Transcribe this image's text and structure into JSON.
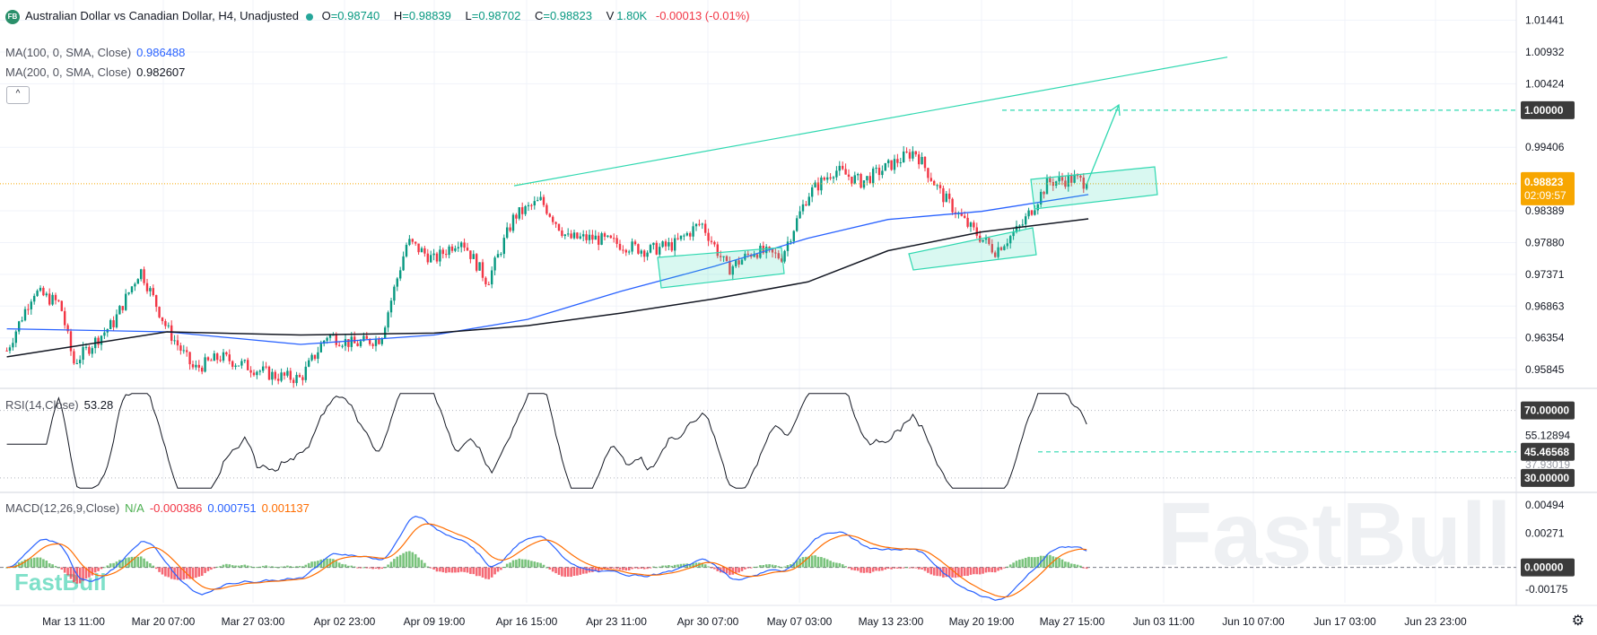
{
  "header": {
    "symbol_badge": "FB",
    "title": "Australian Dollar vs Canadian Dollar, H4, Unadjusted",
    "open_label": "O",
    "open": "=0.98740",
    "high_label": "H",
    "high": "=0.98839",
    "low_label": "L",
    "low": "=0.98702",
    "close_label": "C",
    "close": "=0.98823",
    "volume_label": "V",
    "volume": "1.80K",
    "change": "-0.00013 (-0.01%)"
  },
  "indicators": {
    "ma100_label": "MA(100, 0, SMA, Close)",
    "ma100_value": "0.986488",
    "ma200_label": "MA(200, 0, SMA, Close)",
    "ma200_value": "0.982607",
    "rsi_label": "RSI(14,Close)",
    "rsi_value": "53.28",
    "macd_label": "MACD(12,26,9,Close)",
    "macd_na": "N/A",
    "macd_hist": "-0.000386",
    "macd_line": "0.000751",
    "macd_signal": "0.001137"
  },
  "price_axis": {
    "ticks": [
      "1.01441",
      "1.00932",
      "1.00424",
      "0.99406",
      "0.98389",
      "0.97880",
      "0.97371",
      "0.96863",
      "0.96354",
      "0.95845"
    ],
    "target_tag": "1.00000",
    "current_tag": "0.98823",
    "countdown": "02:09:57"
  },
  "rsi_axis": {
    "ticks": [
      "70.00000",
      "55.12894",
      "45.46568",
      "30.00000"
    ],
    "partial_tick": "37.93019"
  },
  "macd_axis": {
    "ticks": [
      "0.00494",
      "0.00271",
      "0.00000",
      "-0.00175"
    ]
  },
  "time_axis": {
    "ticks": [
      "Mar 13 11:00",
      "Mar 20 07:00",
      "Mar 27 03:00",
      "Apr 02 23:00",
      "Apr 09 19:00",
      "Apr 16 15:00",
      "Apr 23 11:00",
      "Apr 30 07:00",
      "May 07 03:00",
      "May 13 23:00",
      "May 20 19:00",
      "May 27 15:00",
      "Jun 03 11:00",
      "Jun 10 07:00",
      "Jun 17 03:00",
      "Jun 23 23:00"
    ]
  },
  "watermark": {
    "large": "FastBull",
    "small": "FastBull"
  },
  "colors": {
    "up": "#089981",
    "down": "#f23645",
    "ma100": "#2962ff",
    "ma200": "#131722",
    "drawing": "#2fd8b0",
    "macd_line": "#2962ff",
    "signal_line": "#ff6d00",
    "current_price": "#f7a600"
  },
  "chart_data": {
    "type": "candlestick",
    "title": "Australian Dollar vs Canadian Dollar, H4, Unadjusted",
    "price_range": [
      0.9556,
      1.0165
    ],
    "current_price": 0.98823,
    "target_level": 1.0,
    "ma100_last": 0.986488,
    "ma200_last": 0.982607,
    "close_path": [
      {
        "x": "Mar 08",
        "y": 0.9615
      },
      {
        "x": "Mar 10",
        "y": 0.971
      },
      {
        "x": "Mar 12",
        "y": 0.969
      },
      {
        "x": "Mar 13",
        "y": 0.9595
      },
      {
        "x": "Mar 16",
        "y": 0.966
      },
      {
        "x": "Mar 18",
        "y": 0.9745
      },
      {
        "x": "Mar 20",
        "y": 0.965
      },
      {
        "x": "Mar 22",
        "y": 0.9585
      },
      {
        "x": "Mar 24",
        "y": 0.9605
      },
      {
        "x": "Mar 26",
        "y": 0.959
      },
      {
        "x": "Mar 28",
        "y": 0.9575
      },
      {
        "x": "Mar 30",
        "y": 0.957
      },
      {
        "x": "Apr 01",
        "y": 0.964
      },
      {
        "x": "Apr 03",
        "y": 0.9625
      },
      {
        "x": "Apr 05",
        "y": 0.9635
      },
      {
        "x": "Apr 07",
        "y": 0.979
      },
      {
        "x": "Apr 09",
        "y": 0.976
      },
      {
        "x": "Apr 11",
        "y": 0.9795
      },
      {
        "x": "Apr 13",
        "y": 0.9725
      },
      {
        "x": "Apr 15",
        "y": 0.983
      },
      {
        "x": "Apr 17",
        "y": 0.9855
      },
      {
        "x": "Apr 19",
        "y": 0.9795
      },
      {
        "x": "Apr 21",
        "y": 0.9795
      },
      {
        "x": "Apr 23",
        "y": 0.9785
      },
      {
        "x": "Apr 25",
        "y": 0.9775
      },
      {
        "x": "Apr 27",
        "y": 0.9785
      },
      {
        "x": "Apr 29",
        "y": 0.982
      },
      {
        "x": "May 01",
        "y": 0.9745
      },
      {
        "x": "May 03",
        "y": 0.9775
      },
      {
        "x": "May 05",
        "y": 0.9765
      },
      {
        "x": "May 07",
        "y": 0.9865
      },
      {
        "x": "May 09",
        "y": 0.9905
      },
      {
        "x": "May 11",
        "y": 0.9885
      },
      {
        "x": "May 13",
        "y": 0.991
      },
      {
        "x": "May 15",
        "y": 0.9935
      },
      {
        "x": "May 17",
        "y": 0.9865
      },
      {
        "x": "May 19",
        "y": 0.9815
      },
      {
        "x": "May 21",
        "y": 0.9775
      },
      {
        "x": "May 23",
        "y": 0.9815
      },
      {
        "x": "May 25",
        "y": 0.9885
      },
      {
        "x": "May 27",
        "y": 0.989
      },
      {
        "x": "May 28",
        "y": 0.9882
      }
    ],
    "ma100": [
      {
        "x": "Mar 08",
        "y": 0.965
      },
      {
        "x": "Mar 20",
        "y": 0.9645
      },
      {
        "x": "Mar 30",
        "y": 0.9625
      },
      {
        "x": "Apr 09",
        "y": 0.964
      },
      {
        "x": "Apr 16",
        "y": 0.9665
      },
      {
        "x": "Apr 23",
        "y": 0.971
      },
      {
        "x": "Apr 30",
        "y": 0.975
      },
      {
        "x": "May 07",
        "y": 0.9795
      },
      {
        "x": "May 13",
        "y": 0.9825
      },
      {
        "x": "May 20",
        "y": 0.9838
      },
      {
        "x": "May 28",
        "y": 0.9865
      }
    ],
    "ma200": [
      {
        "x": "Mar 08",
        "y": 0.9605
      },
      {
        "x": "Mar 20",
        "y": 0.9645
      },
      {
        "x": "Mar 30",
        "y": 0.964
      },
      {
        "x": "Apr 09",
        "y": 0.9643
      },
      {
        "x": "Apr 16",
        "y": 0.9655
      },
      {
        "x": "Apr 23",
        "y": 0.9675
      },
      {
        "x": "Apr 30",
        "y": 0.9698
      },
      {
        "x": "May 07",
        "y": 0.9725
      },
      {
        "x": "May 13",
        "y": 0.9775
      },
      {
        "x": "May 20",
        "y": 0.9805
      },
      {
        "x": "May 28",
        "y": 0.9826
      }
    ],
    "rsi": {
      "range": [
        22,
        82
      ],
      "levels": [
        70,
        30
      ],
      "last": 53.28,
      "dashed_level": 45.46568
    },
    "macd": {
      "range": [
        -0.0028,
        0.0058
      ],
      "line_last": 0.000751,
      "signal_last": 0.001137,
      "hist_last": -0.000386
    }
  }
}
